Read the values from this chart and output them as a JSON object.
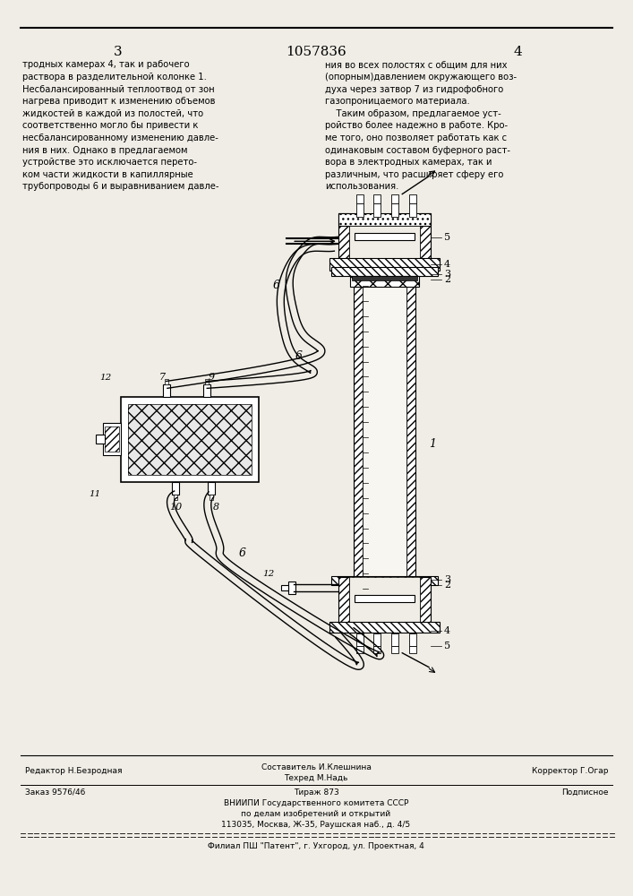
{
  "page_width": 7.07,
  "page_height": 10.0,
  "bg_color": "#f0ede6",
  "header": {
    "left_num": "3",
    "center_num": "1057836",
    "right_num": "4"
  },
  "left_col_text": "тродных камерах 4, так и рабочего\nраствора в разделительной колонке 1.\nНесбалансированный теплоотвод от зон\nнагрева приводит к изменению объемов\nжидкостей в каждой из полостей, что\nсоответственно могло бы привести к\nнесбалансированному изменению давле-\nния в них. Однако в предлагаемом\nустройстве это исключается перето-\nком части жидкости в капиллярные\nтрубопроводы 6 и выравниванием давле-",
  "right_col_text": "ния во всех полостях с общим для них\n(опорным)давлением окружающего воз-\nдуха через затвор 7 из гидрофобного\nгазопроницаемого материала.\n    Таким образом, предлагаемое уст-\nройство более надежно в работе. Кро-\nме того, оно позволяет работать как с\nодинаковым составом буферного раст-\nвора в электродных камерах, так и\nразличным, что расширяет сферу его\nиспользования.",
  "footer": {
    "editor_label": "Редактор Н.Безродная",
    "composer_label": "Составитель И.Клешнина",
    "tech_label": "Техред М.Надь",
    "corrector_label": "Корректор Г.Огар",
    "order": "Заказ 9576/46",
    "circulation": "Тираж 873",
    "subscription": "Подписное",
    "org_line1": "ВНИИПИ Государственного комитета СССР",
    "org_line2": "по делам изобретений и открытий",
    "org_line3": "113035, Москва, Ж-35, Раушская наб., д. 4/5",
    "branch": "Филиал ПШ \"Патент\", г. Ухгород, ул. Проектная, 4"
  }
}
